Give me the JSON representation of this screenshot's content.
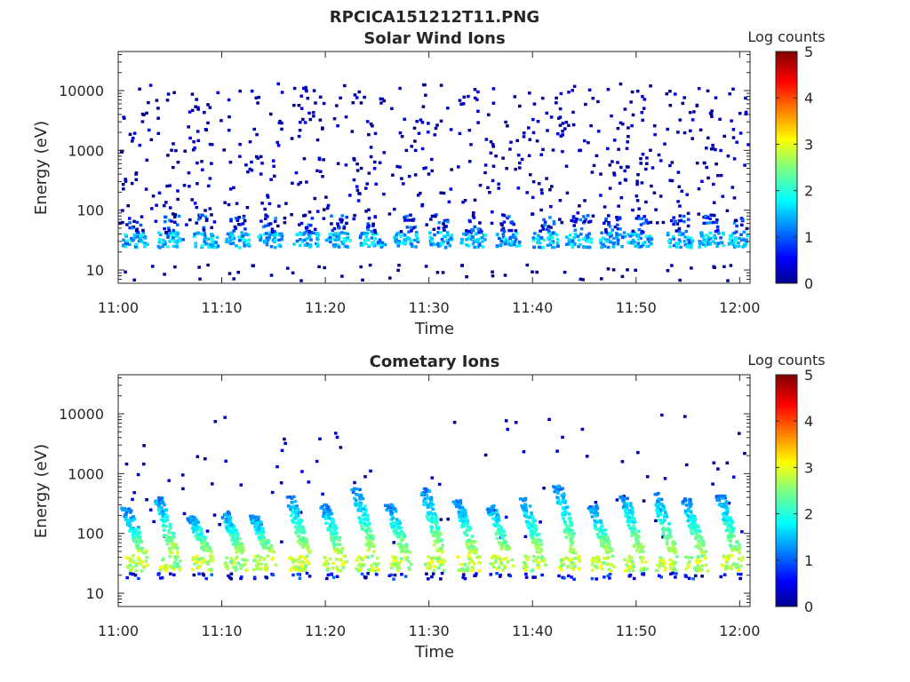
{
  "figure_title": "RPCICA151212T11.PNG",
  "chart_data": [
    {
      "type": "heatmap",
      "title": "Solar Wind Ions",
      "xlabel": "Time",
      "ylabel": "Energy (eV)",
      "y_scale": "log",
      "ylim": [
        6,
        45000
      ],
      "x_range": [
        "11:00",
        "12:01"
      ],
      "x_ticks": [
        "11:00",
        "11:10",
        "11:20",
        "11:30",
        "11:40",
        "11:50",
        "12:00"
      ],
      "y_ticks": [
        10,
        100,
        1000,
        10000
      ],
      "y_tick_labels": [
        "10",
        "100",
        "1000",
        "10000"
      ],
      "colorbar": {
        "label": "Log counts",
        "range": [
          0,
          5
        ],
        "ticks": [
          "0",
          "1",
          "2",
          "3",
          "4",
          "5"
        ],
        "colormap": "jet"
      },
      "burst_times_min": [
        0.8,
        4.2,
        7.6,
        10.6,
        13.8,
        17.3,
        20.4,
        23.7,
        27.0,
        30.2,
        33.4,
        36.8,
        40.4,
        43.6,
        46.9,
        49.5,
        53.4,
        56.4,
        59.3
      ],
      "core_energy_ev": [
        25,
        45
      ],
      "core_level_log_counts": [
        1.0,
        2.0
      ],
      "background_level_log_counts": [
        0.0,
        0.5
      ]
    },
    {
      "type": "heatmap",
      "title": "Cometary Ions",
      "xlabel": "Time",
      "ylabel": "Energy (eV)",
      "y_scale": "log",
      "ylim": [
        6,
        45000
      ],
      "x_range": [
        "11:00",
        "12:01"
      ],
      "x_ticks": [
        "11:00",
        "11:10",
        "11:20",
        "11:30",
        "11:40",
        "11:50",
        "12:00"
      ],
      "y_ticks": [
        10,
        100,
        1000,
        10000
      ],
      "y_tick_labels": [
        "10",
        "100",
        "1000",
        "10000"
      ],
      "colorbar": {
        "label": "Log counts",
        "range": [
          0,
          5
        ],
        "ticks": [
          "0",
          "1",
          "2",
          "3",
          "4",
          "5"
        ],
        "colormap": "jet"
      },
      "burst_times_min": [
        0.6,
        3.7,
        6.9,
        10.1,
        12.9,
        16.4,
        19.7,
        22.8,
        26.0,
        29.4,
        32.6,
        35.8,
        39.0,
        42.3,
        45.6,
        48.7,
        51.8,
        54.6,
        58.0
      ],
      "core_energy_ev": [
        25,
        45
      ],
      "core_level_log_counts": [
        2.3,
        3.2
      ],
      "burst_top_energy_ev": [
        200,
        700
      ]
    }
  ]
}
